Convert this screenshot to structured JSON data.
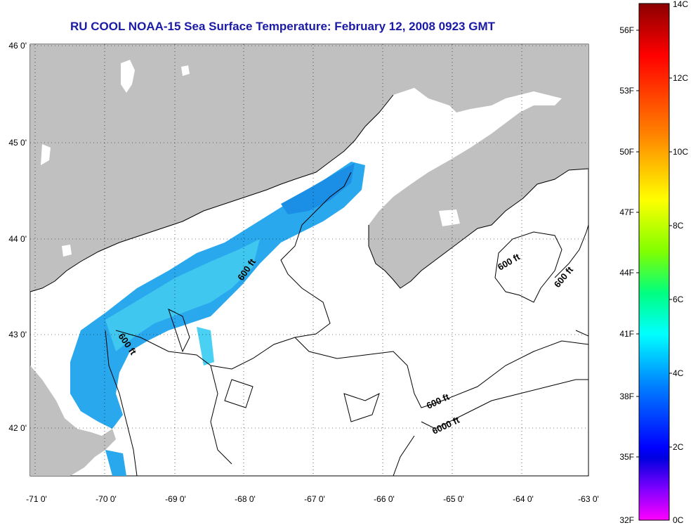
{
  "title": "RU COOL  NOAA-15  Sea Surface Temperature:  February 12, 2008 0923 GMT",
  "map": {
    "lon_ticks": [
      "-71 0'",
      "-70 0'",
      "-69 0'",
      "-68 0'",
      "-67 0'",
      "-66 0'",
      "-65 0'",
      "-64 0'",
      "-63 0'"
    ],
    "lat_ticks": [
      "46 0'",
      "45 0'",
      "44 0'",
      "43 0'",
      "42 0'"
    ],
    "contour_labels": [
      {
        "text": "600 ft"
      },
      {
        "text": "600 ft"
      },
      {
        "text": "600 ft"
      },
      {
        "text": "600 ft"
      },
      {
        "text": "600 ft"
      },
      {
        "text": "6000 ft"
      }
    ],
    "colors": {
      "land": "#c0c0c0",
      "ocean": "#ffffff",
      "grid": "#000000",
      "contour": "#000000"
    }
  },
  "colorbar": {
    "fahrenheit_labels": [
      "56F",
      "53F",
      "50F",
      "47F",
      "44F",
      "41F",
      "38F",
      "35F",
      "32F"
    ],
    "celsius_labels": [
      "14C",
      "12C",
      "10C",
      "8C",
      "6C",
      "4C",
      "2C",
      "0C"
    ],
    "gradient_colors": [
      "#8b0000",
      "#ff0000",
      "#ff8000",
      "#ffff00",
      "#80ff00",
      "#00ff80",
      "#00ffff",
      "#0080ff",
      "#0000ff",
      "#8000ff",
      "#ff00ff"
    ]
  }
}
